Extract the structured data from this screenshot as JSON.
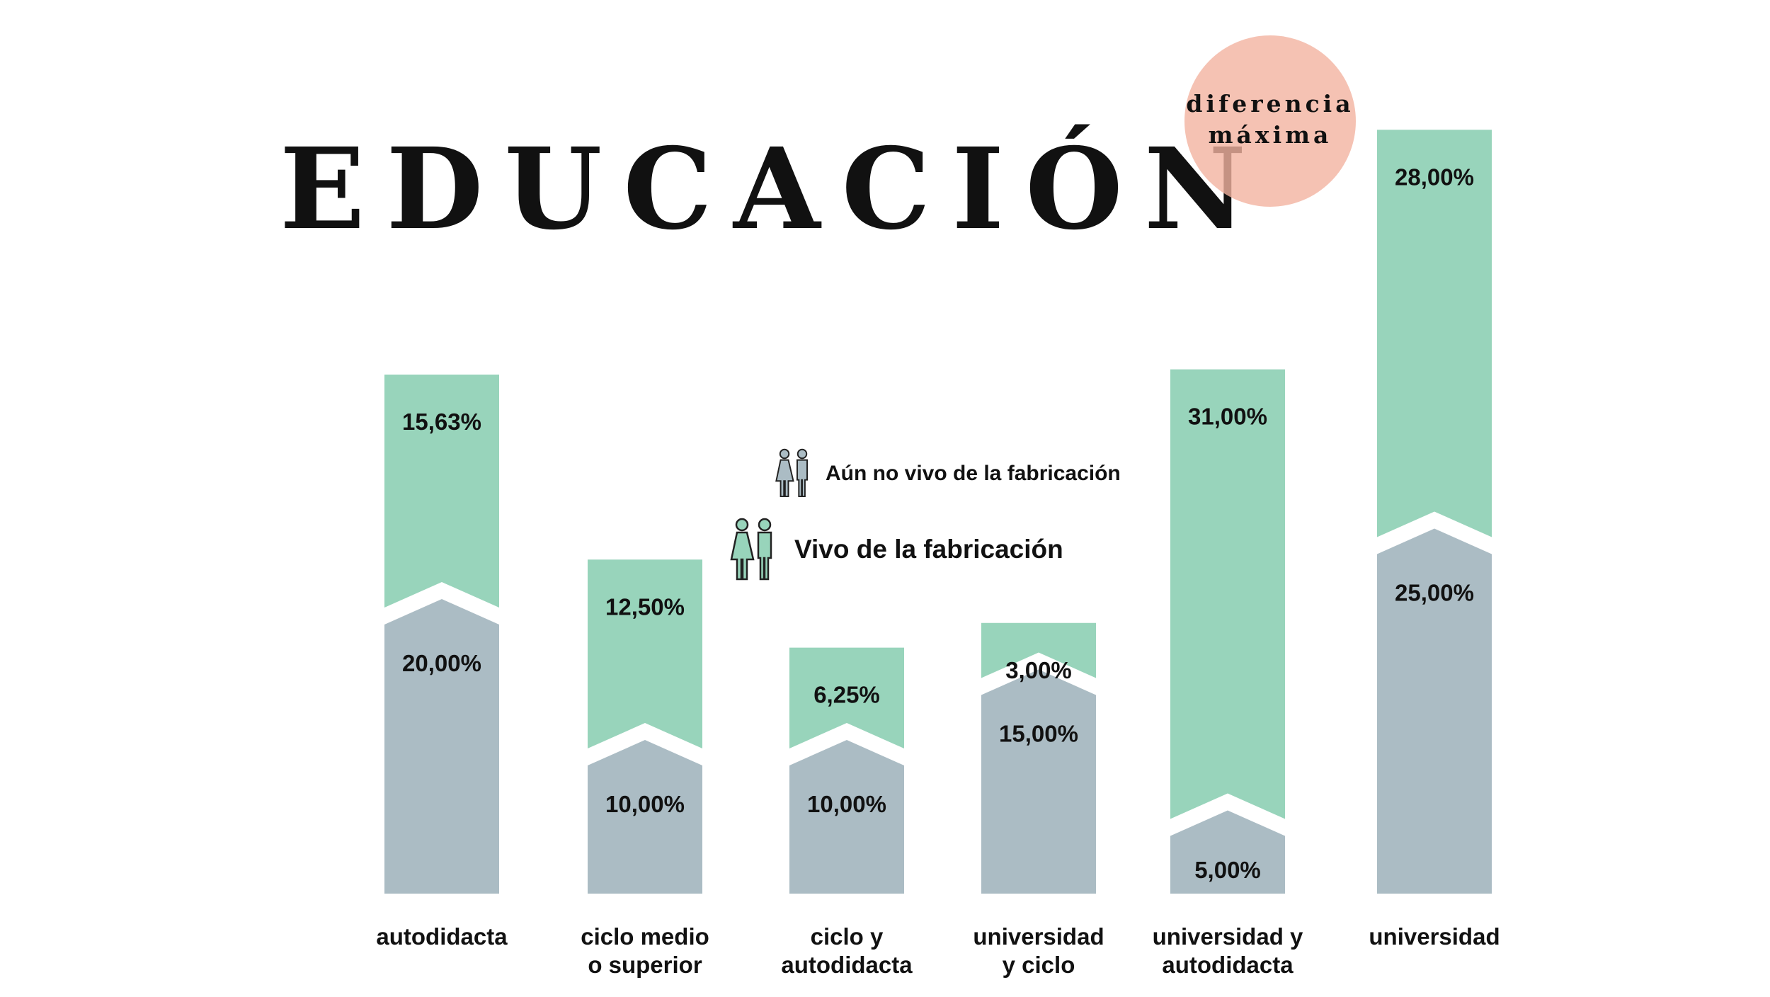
{
  "title": "EDUCACIÓN",
  "badge": {
    "line1": "diferencia",
    "line2": "máxima"
  },
  "legend": [
    {
      "label": "Aún no vivo de la fabricación",
      "color": "#abbcc4",
      "icon": "couple-icon"
    },
    {
      "label": "Vivo de la fabricación",
      "color": "#98d4bb",
      "icon": "couple-icon"
    }
  ],
  "colors": {
    "green": "#98d4bb",
    "gray": "#abbcc4",
    "badge": "#f3b3a0",
    "text": "#111111"
  },
  "chart_data": {
    "type": "bar",
    "stacked": true,
    "title": "EDUCACIÓN",
    "categories": [
      [
        "autodidacta"
      ],
      [
        "ciclo medio",
        "o superior"
      ],
      [
        "ciclo y",
        "autodidacta"
      ],
      [
        "universidad",
        "y ciclo"
      ],
      [
        "universidad y",
        "autodidacta"
      ],
      [
        "universidad"
      ]
    ],
    "series": [
      {
        "name": "Aún no vivo de la fabricación",
        "color": "#abbcc4",
        "values": [
          20.0,
          10.0,
          10.0,
          15.0,
          5.0,
          25.0
        ],
        "labels": [
          "20,00%",
          "10,00%",
          "10,00%",
          "15,00%",
          "5,00%",
          "25,00%"
        ]
      },
      {
        "name": "Vivo de la fabricación",
        "color": "#98d4bb",
        "values": [
          15.63,
          12.5,
          6.25,
          3.0,
          31.0,
          28.0
        ],
        "labels": [
          "15,63%",
          "12,50%",
          "6,25%",
          "3,00%",
          "31,00%",
          "28,00%"
        ]
      }
    ],
    "highlight": {
      "category_index": 4,
      "label": "diferencia máxima"
    },
    "grid": false,
    "legend_position": "center"
  }
}
